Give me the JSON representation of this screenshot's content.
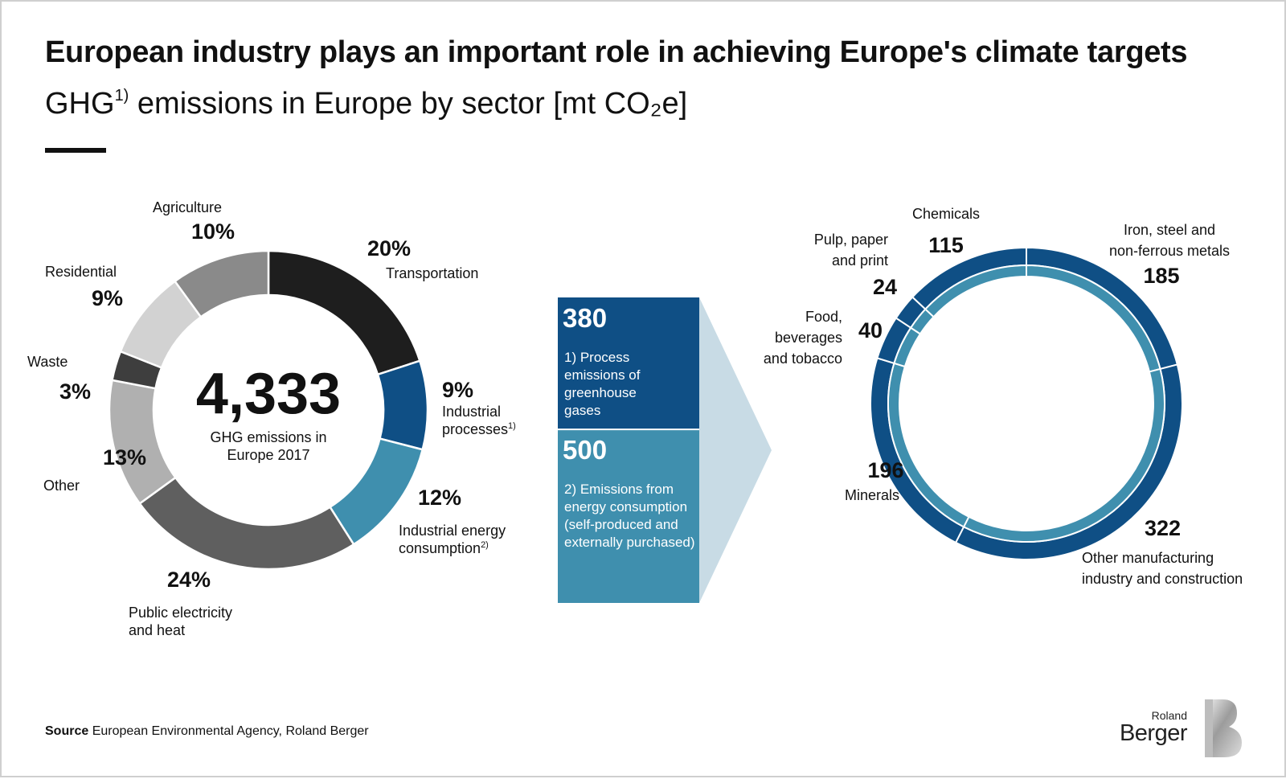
{
  "header": {
    "title": "European industry plays an important role in achieving Europe's climate targets",
    "subtitle_pre": "GHG",
    "subtitle_sup": "1)",
    "subtitle_post": " emissions in Europe by sector [mt CO₂e]"
  },
  "colors": {
    "transportation": "#1e1e1e",
    "industrial_processes": "#0f4f85",
    "industrial_energy": "#3f8fae",
    "public_electricity": "#5f5f5f",
    "other": "#b0b0b0",
    "waste": "#3e3e3e",
    "residential": "#d2d2d2",
    "agriculture": "#8a8a8a",
    "outer_ring": "#0f4f85",
    "inner_ring": "#3f8fae",
    "callout_light": "#c8dbe5"
  },
  "chart_data": [
    {
      "type": "pie",
      "variant": "donut",
      "center_value": "4,333",
      "center_label_lines": [
        "GHG emissions in",
        "Europe 2017"
      ],
      "slices": [
        {
          "key": "transportation",
          "label_lines": [
            "Transportation"
          ],
          "value": 20,
          "display": "20%"
        },
        {
          "key": "industrial_processes",
          "label_lines": [
            "Industrial",
            "processes"
          ],
          "label_sup": "1)",
          "value": 9,
          "display": "9%"
        },
        {
          "key": "industrial_energy",
          "label_lines": [
            "Industrial energy",
            "consumption"
          ],
          "label_sup": "2)",
          "value": 12,
          "display": "12%"
        },
        {
          "key": "public_electricity",
          "label_lines": [
            "Public electricity",
            "and heat"
          ],
          "value": 24,
          "display": "24%"
        },
        {
          "key": "other",
          "label_lines": [
            "Other"
          ],
          "value": 13,
          "display": "13%"
        },
        {
          "key": "waste",
          "label_lines": [
            "Waste"
          ],
          "value": 3,
          "display": "3%"
        },
        {
          "key": "residential",
          "label_lines": [
            "Residential"
          ],
          "value": 9,
          "display": "9%"
        },
        {
          "key": "agriculture",
          "label_lines": [
            "Agriculture"
          ],
          "value": 10,
          "display": "10%"
        }
      ]
    },
    {
      "type": "pie",
      "variant": "double-ring",
      "inner_ring_split": [
        380,
        500
      ],
      "callouts": [
        {
          "value": "380",
          "text_lines": [
            "1) Process",
            "emissions of",
            "greenhouse",
            "gases"
          ]
        },
        {
          "value": "500",
          "text_lines": [
            "2) Emissions from",
            "energy consumption",
            "(self-produced and",
            "externally purchased)"
          ]
        }
      ],
      "slices": [
        {
          "key": "iron_steel",
          "label_lines": [
            "Iron, steel and",
            "non-ferrous metals"
          ],
          "value": 185,
          "display": "185"
        },
        {
          "key": "other_manufacturing",
          "label_lines": [
            "Other manufacturing",
            "industry and construction"
          ],
          "value": 322,
          "display": "322"
        },
        {
          "key": "minerals",
          "label_lines": [
            "Minerals"
          ],
          "value": 196,
          "display": "196"
        },
        {
          "key": "food",
          "label_lines": [
            "Food,",
            "beverages",
            "and tobacco"
          ],
          "value": 40,
          "display": "40"
        },
        {
          "key": "pulp",
          "label_lines": [
            "Pulp, paper",
            "and print"
          ],
          "value": 24,
          "display": "24"
        },
        {
          "key": "chemicals",
          "label_lines": [
            "Chemicals"
          ],
          "value": 115,
          "display": "115"
        }
      ]
    }
  ],
  "footer": {
    "source_label": "Source",
    "source_text": " European Environmental Agency, Roland Berger"
  },
  "logo": {
    "line1": "Roland",
    "line2": "Berger"
  }
}
